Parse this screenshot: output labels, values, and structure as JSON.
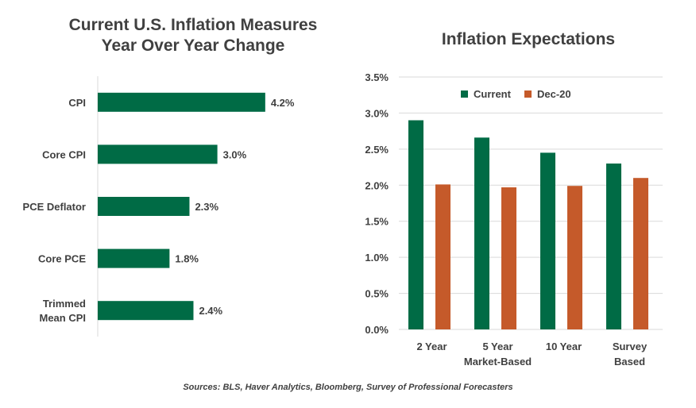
{
  "colors": {
    "green": "#006b45",
    "orange": "#c55a2a",
    "grid": "#d9d9d9",
    "axis": "#d9d9d9",
    "text": "#404040"
  },
  "chart_data": [
    {
      "type": "bar",
      "orientation": "horizontal",
      "title_lines": [
        "Current U.S. Inflation Measures",
        "Year Over Year Change"
      ],
      "categories": [
        [
          "CPI"
        ],
        [
          "Core CPI"
        ],
        [
          "PCE Deflator"
        ],
        [
          "Core PCE"
        ],
        [
          "Trimmed",
          "Mean CPI"
        ]
      ],
      "values": [
        4.2,
        3.0,
        2.3,
        1.8,
        2.4
      ],
      "value_labels": [
        "4.2%",
        "3.0%",
        "2.3%",
        "1.8%",
        "2.4%"
      ],
      "xlim": [
        0,
        5
      ],
      "grid": false,
      "legend": "none"
    },
    {
      "type": "bar",
      "orientation": "vertical",
      "title": "Inflation Expectations",
      "categories": [
        [
          "2 Year"
        ],
        [
          "5 Year",
          "Market-Based"
        ],
        [
          "10 Year"
        ],
        [
          "Survey",
          "Based"
        ]
      ],
      "series": [
        {
          "name": "Current",
          "color": "#006b45",
          "values": [
            2.9,
            2.66,
            2.45,
            2.3
          ]
        },
        {
          "name": "Dec-20",
          "color": "#c55a2a",
          "values": [
            2.01,
            1.97,
            1.99,
            2.1
          ]
        }
      ],
      "ylim": [
        0,
        3.5
      ],
      "yticks": [
        0,
        0.5,
        1.0,
        1.5,
        2.0,
        2.5,
        3.0,
        3.5
      ],
      "ytick_labels": [
        "0.0%",
        "0.5%",
        "1.0%",
        "1.5%",
        "2.0%",
        "2.5%",
        "3.0%",
        "3.5%"
      ],
      "grid": true,
      "legend": "top-left"
    }
  ],
  "footer": {
    "source": "Sources: BLS, Haver Analytics, Bloomberg, Survey of Professional Forecasters"
  }
}
